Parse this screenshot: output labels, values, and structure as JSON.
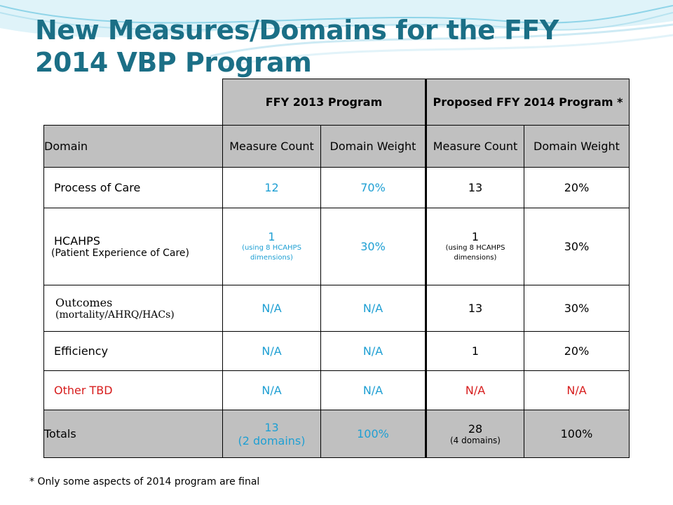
{
  "title": "New Measures/Domains for the FFY 2014 VBP Program",
  "colors": {
    "title": "#1b6f86",
    "blue_values": "#1e9fd3",
    "red_values": "#d71d1d",
    "header_fill": "#c0c0c0"
  },
  "table": {
    "group_headers": [
      "FFY 2013 Program",
      "Proposed FFY 2014 Program *"
    ],
    "columns": [
      "Domain",
      "Measure Count",
      "Domain Weight",
      "Measure Count",
      "Domain Weight"
    ],
    "rows": [
      {
        "domain": "Process of Care",
        "c2013": "12",
        "w2013": "70%",
        "c2014": "13",
        "w2014": "20%"
      },
      {
        "domain": "HCAHPS",
        "domain_sub": "(Patient Experience of Care)",
        "c2013": "1",
        "c2013_sub": "(using 8 HCAHPS dimensions)",
        "w2013": "30%",
        "c2014": "1",
        "c2014_sub": "(using 8 HCAHPS dimensions)",
        "w2014": "30%"
      },
      {
        "domain": "Outcomes",
        "domain_sub": "(mortality/AHRQ/HACs)",
        "c2013": "N/A",
        "w2013": "N/A",
        "c2014": "13",
        "w2014": "30%"
      },
      {
        "domain": "Efficiency",
        "c2013": "N/A",
        "w2013": "N/A",
        "c2014": "1",
        "w2014": "20%"
      },
      {
        "domain": "Other TBD",
        "c2013": "N/A",
        "w2013": "N/A",
        "c2014": "N/A",
        "w2014": "N/A"
      },
      {
        "domain": "Totals",
        "c2013": "13",
        "c2013_sub": "(2 domains)",
        "w2013": "100%",
        "c2014": "28",
        "c2014_sub": "(4 domains)",
        "w2014": "100%"
      }
    ]
  },
  "footnote": "* Only some aspects of 2014 program are final"
}
